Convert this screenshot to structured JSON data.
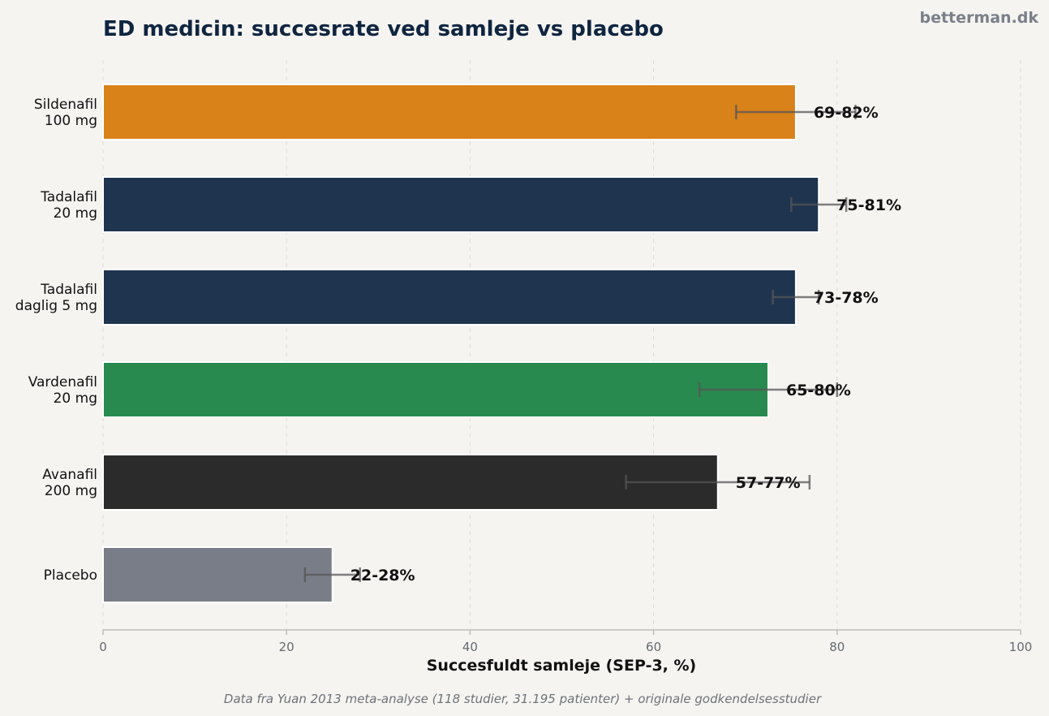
{
  "brand": "betterman.dk",
  "footnote": "Data fra Yuan 2013 meta-analyse (118 studier, 31.195 patienter) + originale godkendelsesstudier",
  "chart_data": {
    "type": "bar",
    "orientation": "horizontal",
    "title": "ED medicin: succesrate ved samleje vs placebo",
    "xlabel": "Succesfuldt samleje (SEP-3, %)",
    "xlim": [
      0,
      100
    ],
    "xticks": [
      0,
      20,
      40,
      60,
      80,
      100
    ],
    "grid": "vertical dashed",
    "categories": [
      [
        "Sildenafil",
        "100 mg"
      ],
      [
        "Tadalafil",
        "20 mg"
      ],
      [
        "Tadalafil",
        "daglig 5 mg"
      ],
      [
        "Vardenafil",
        "20 mg"
      ],
      [
        "Avanafil",
        "200 mg"
      ],
      [
        "Placebo"
      ]
    ],
    "values": [
      75.5,
      78,
      75.5,
      72.5,
      67,
      25
    ],
    "range_low": [
      69,
      75,
      73,
      65,
      57,
      22
    ],
    "range_high": [
      82,
      81,
      78,
      80,
      77,
      28
    ],
    "range_labels": [
      "69-82%",
      "75-81%",
      "73-78%",
      "65-80%",
      "57-77%",
      "22-28%"
    ],
    "colors": [
      "#d9821a",
      "#1f344f",
      "#1f344f",
      "#288a4f",
      "#2b2b2b",
      "#787d88"
    ]
  }
}
